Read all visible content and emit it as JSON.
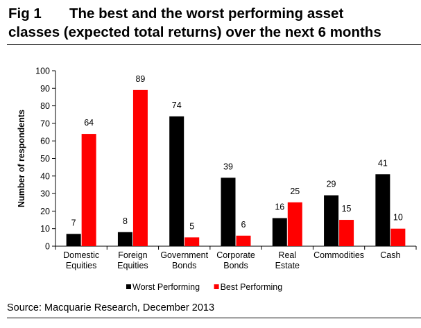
{
  "header": {
    "fig_label": "Fig 1",
    "title_line1": "The best and the worst performing asset",
    "title_line2": "classes (expected total returns) over the next 6 months"
  },
  "chart_data": {
    "type": "bar",
    "ylabel": "Number of respondents",
    "ylim": [
      0,
      100
    ],
    "yticks": [
      0,
      10,
      20,
      30,
      40,
      50,
      60,
      70,
      80,
      90,
      100
    ],
    "categories": [
      [
        "Domestic",
        "Equities"
      ],
      [
        "Foreign",
        "Equities"
      ],
      [
        "Government",
        "Bonds"
      ],
      [
        "Corporate",
        "Bonds"
      ],
      [
        "Real",
        "Estate"
      ],
      [
        "Commodities"
      ],
      [
        "Cash"
      ]
    ],
    "series": [
      {
        "name": "Worst Performing",
        "color": "#000000",
        "values": [
          7,
          8,
          74,
          39,
          16,
          29,
          41
        ]
      },
      {
        "name": "Best Performing",
        "color": "#ff0000",
        "values": [
          64,
          89,
          5,
          6,
          25,
          15,
          10
        ]
      }
    ],
    "legend_position": "bottom"
  },
  "footer": {
    "source": "Source: Macquarie Research, December  2013"
  }
}
